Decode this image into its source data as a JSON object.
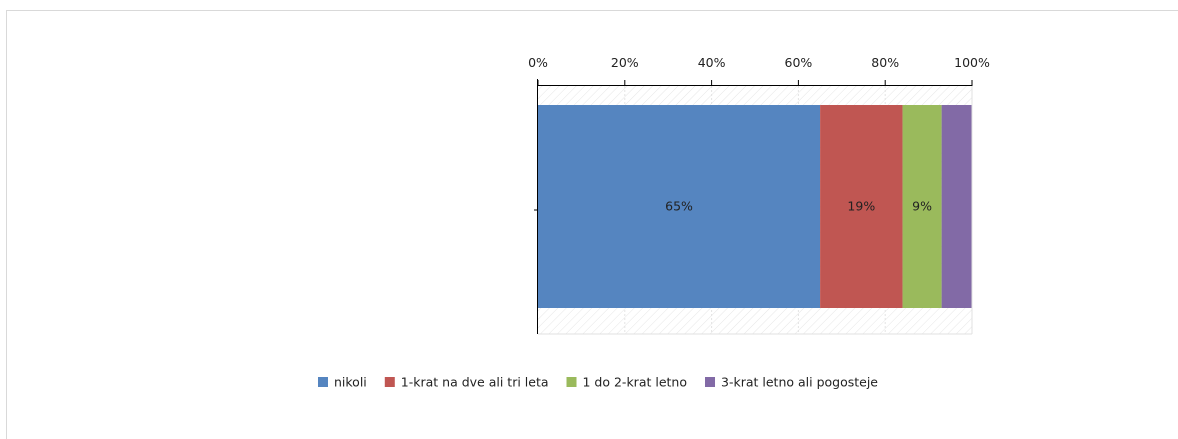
{
  "chart_data": {
    "type": "bar",
    "orientation": "horizontal",
    "stacked": true,
    "percent_scale": true,
    "categories": [
      ""
    ],
    "series": [
      {
        "name": "nikoli",
        "values": [
          65
        ],
        "color": "#5585c0",
        "label": "65%"
      },
      {
        "name": "1-krat na dve ali tri leta",
        "values": [
          19
        ],
        "color": "#c05652",
        "label": "19%"
      },
      {
        "name": "1 do 2-krat letno",
        "values": [
          9
        ],
        "color": "#9aba5c",
        "label": "9%"
      },
      {
        "name": "3-krat letno ali pogosteje",
        "values": [
          7
        ],
        "color": "#826aa6",
        "label": ""
      }
    ],
    "xlim": [
      0,
      100
    ],
    "xticks": [
      0,
      20,
      40,
      60,
      80,
      100
    ],
    "xtick_labels": [
      "0%",
      "20%",
      "40%",
      "60%",
      "80%",
      "100%"
    ],
    "x_axis_position": "top",
    "grid": true,
    "legend": "bottom"
  }
}
